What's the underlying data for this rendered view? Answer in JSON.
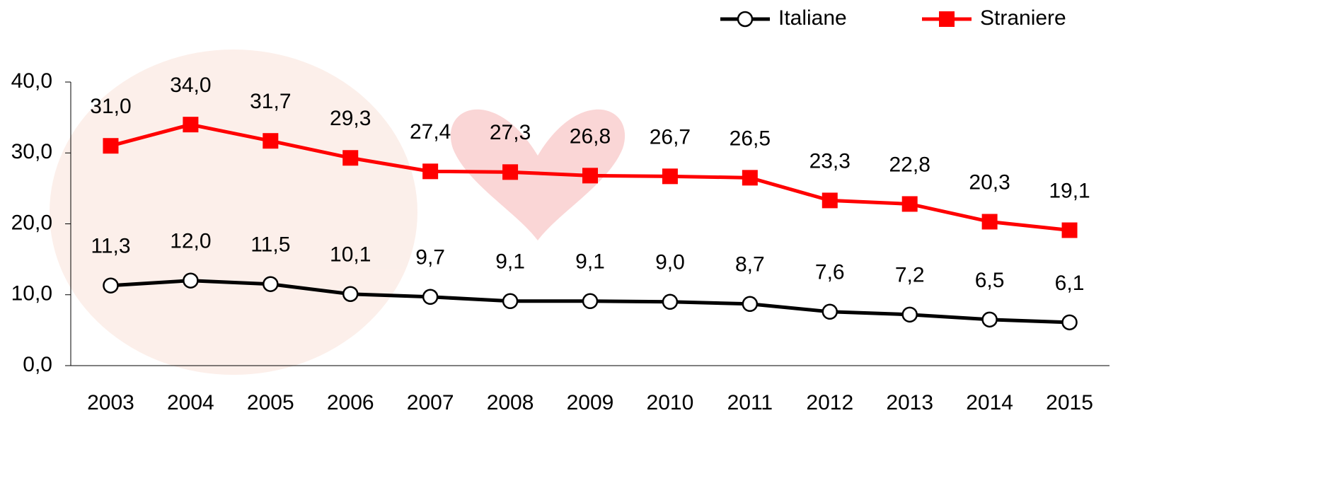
{
  "chart_data": {
    "type": "line",
    "categories": [
      "2003",
      "2004",
      "2005",
      "2006",
      "2007",
      "2008",
      "2009",
      "2010",
      "2011",
      "2012",
      "2013",
      "2014",
      "2015"
    ],
    "series": [
      {
        "name": "Italiane",
        "color": "#000000",
        "marker": "circle",
        "values": [
          11.3,
          12.0,
          11.5,
          10.1,
          9.7,
          9.1,
          9.1,
          9.0,
          8.7,
          7.6,
          7.2,
          6.5,
          6.1
        ],
        "value_labels": [
          "11,3",
          "12,0",
          "11,5",
          "10,1",
          "9,7",
          "9,1",
          "9,1",
          "9,0",
          "8,7",
          "7,6",
          "7,2",
          "6,5",
          "6,1"
        ]
      },
      {
        "name": "Straniere",
        "color": "#ff0000",
        "marker": "square",
        "values": [
          31.0,
          34.0,
          31.7,
          29.3,
          27.4,
          27.3,
          26.8,
          26.7,
          26.5,
          23.3,
          22.8,
          20.3,
          19.1
        ],
        "value_labels": [
          "31,0",
          "34,0",
          "31,7",
          "29,3",
          "27,4",
          "27,3",
          "26,8",
          "26,7",
          "26,5",
          "23,3",
          "22,8",
          "20,3",
          "19,1"
        ]
      }
    ],
    "ylim": [
      0,
      40
    ],
    "yticks": [
      {
        "value": 0,
        "label": "0,0"
      },
      {
        "value": 10,
        "label": "10,0"
      },
      {
        "value": 20,
        "label": "20,0"
      },
      {
        "value": 30,
        "label": "30,0"
      },
      {
        "value": 40,
        "label": "40,0"
      }
    ],
    "grid": false,
    "legend": "top-right"
  }
}
